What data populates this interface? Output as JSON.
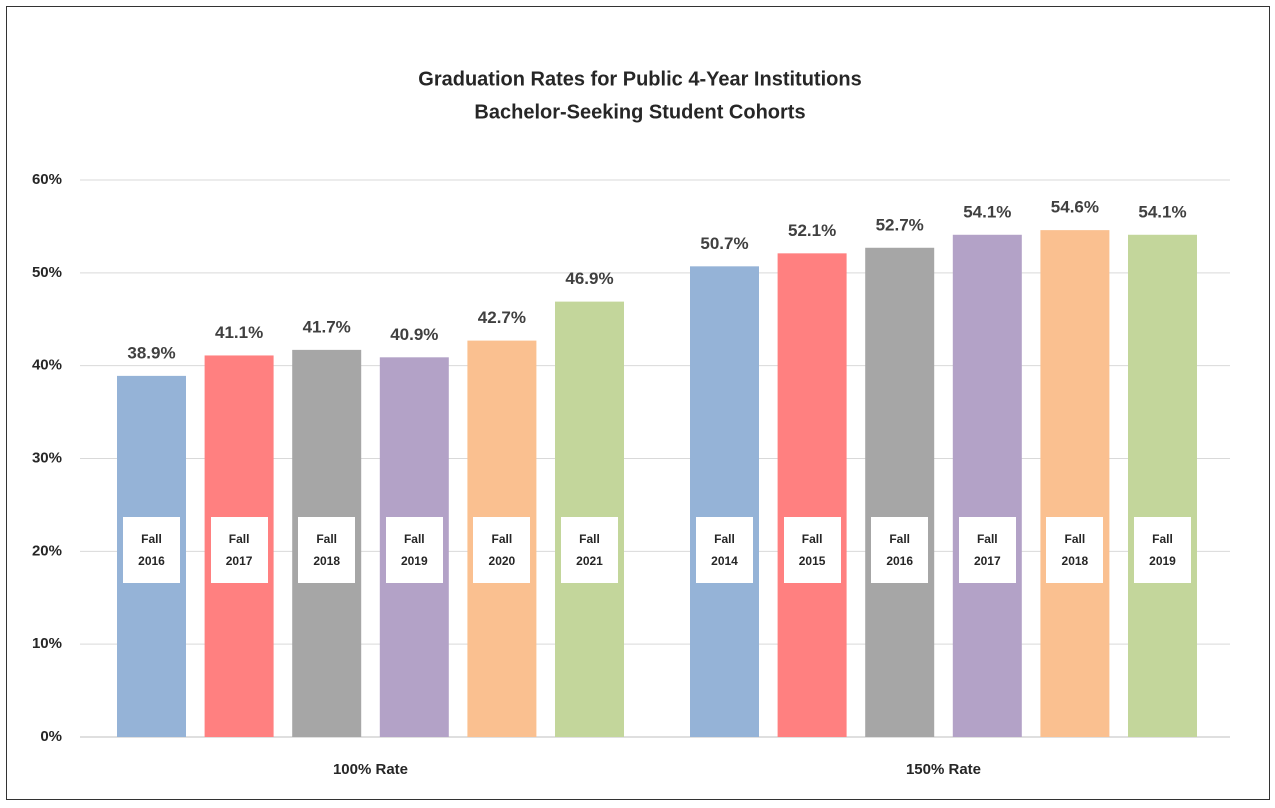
{
  "chart_data": {
    "type": "grouped_bar",
    "title": "Graduation Rates for Public 4-Year Institutions",
    "subtitle": "Bachelor-Seeking Student Cohorts",
    "colors": [
      "#95b3d7",
      "#ff8080",
      "#a6a6a6",
      "#b3a2c7",
      "#fac090",
      "#c3d69b"
    ],
    "groups": [
      {
        "name": "100% Rate",
        "labels": [
          "Fall 2016",
          "Fall 2017",
          "Fall 2018",
          "Fall 2019",
          "Fall 2020",
          "Fall 2021"
        ],
        "values": [
          38.9,
          41.1,
          41.7,
          40.9,
          42.7,
          46.9
        ],
        "value_labels": [
          "38.9%",
          "41.1%",
          "41.7%",
          "40.9%",
          "42.7%",
          "46.9%"
        ]
      },
      {
        "name": "150% Rate",
        "labels": [
          "Fall 2014",
          "Fall 2015",
          "Fall 2016",
          "Fall 2017",
          "Fall 2018",
          "Fall 2019"
        ],
        "values": [
          50.7,
          52.1,
          52.7,
          54.1,
          54.6,
          54.1
        ],
        "value_labels": [
          "50.7%",
          "52.1%",
          "52.7%",
          "54.1%",
          "54.6%",
          "54.1%"
        ]
      }
    ],
    "ylim": [
      0,
      60
    ],
    "yticks": [
      {
        "value": 0,
        "label": "0%"
      },
      {
        "value": 10,
        "label": "10%"
      },
      {
        "value": 20,
        "label": "20%"
      },
      {
        "value": 30,
        "label": "30%"
      },
      {
        "value": 40,
        "label": "40%"
      },
      {
        "value": 50,
        "label": "50%"
      },
      {
        "value": 60,
        "label": "60%"
      }
    ],
    "grid": true
  }
}
